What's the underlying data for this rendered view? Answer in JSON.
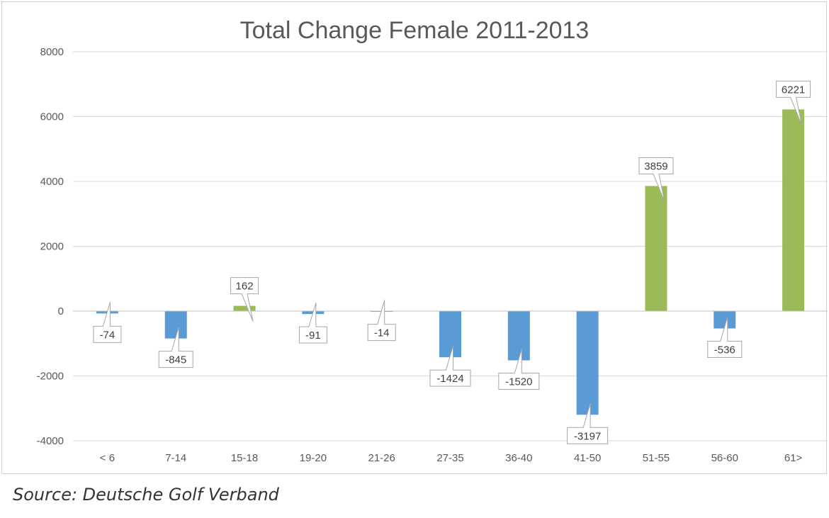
{
  "chart_data": {
    "type": "bar",
    "title": "Total Change Female 2011-2013",
    "xlabel": "",
    "ylabel": "",
    "categories": [
      "< 6",
      "7-14",
      "15-18",
      "19-20",
      "21-26",
      "27-35",
      "36-40",
      "41-50",
      "51-55",
      "56-60",
      "61>"
    ],
    "values": [
      -74,
      -845,
      162,
      -91,
      -14,
      -1424,
      -1520,
      -3197,
      3859,
      -536,
      6221
    ],
    "ylim": [
      -4000,
      8000
    ],
    "yticks": [
      -4000,
      -2000,
      0,
      2000,
      4000,
      6000,
      8000
    ],
    "grid": true,
    "legend": "none",
    "colors": {
      "negative": "#5b9bd5",
      "positive": "#9bbb59",
      "gridline": "#d9d9d9",
      "axis": "#bfbfbf"
    }
  },
  "source": "Source: Deutsche Golf Verband"
}
